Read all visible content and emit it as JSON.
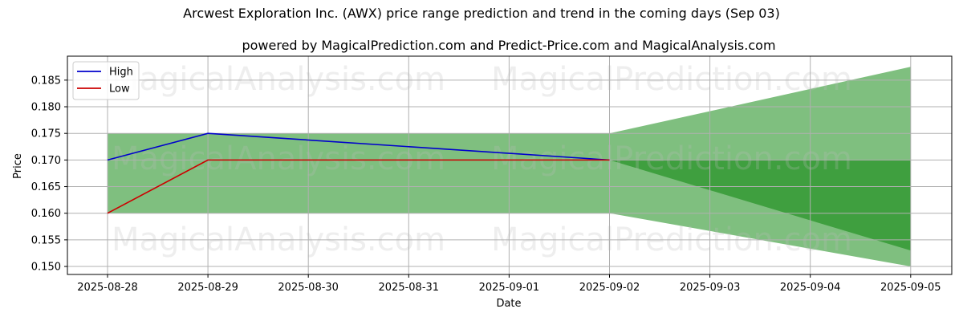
{
  "chart_data": {
    "type": "line",
    "title": "Arcwest Exploration Inc. (AWX) price range prediction and trend in the coming days (Sep 03)",
    "subtitle": "powered by MagicalPrediction.com and Predict-Price.com and MagicalAnalysis.com",
    "xlabel": "Date",
    "ylabel": "Price",
    "x": [
      "2025-08-28",
      "2025-08-29",
      "2025-08-30",
      "2025-08-31",
      "2025-09-01",
      "2025-09-02",
      "2025-09-03",
      "2025-09-04",
      "2025-09-05"
    ],
    "yticks": [
      "0.150",
      "0.155",
      "0.160",
      "0.165",
      "0.170",
      "0.175",
      "0.180",
      "0.185"
    ],
    "ylim": [
      0.1485,
      0.1895
    ],
    "grid": true,
    "legend_position": "top-left",
    "series": [
      {
        "name": "High",
        "color": "#0000cc",
        "x": [
          "2025-08-28",
          "2025-08-29",
          "2025-09-02"
        ],
        "values": [
          0.17,
          0.175,
          0.17
        ]
      },
      {
        "name": "Low",
        "color": "#cc0000",
        "x": [
          "2025-08-28",
          "2025-08-29",
          "2025-09-02"
        ],
        "values": [
          0.16,
          0.17,
          0.17
        ]
      }
    ],
    "bands": [
      {
        "name": "historical-range",
        "color": "#7fbf7f",
        "x_from": "2025-08-28",
        "x_to": "2025-09-02",
        "low": 0.16,
        "high": 0.175
      },
      {
        "name": "prediction-outer",
        "color": "#7fbf7f",
        "x_from": "2025-09-02",
        "x_to": "2025-09-05",
        "high_from": 0.175,
        "high_to": 0.1875,
        "low_from": 0.16,
        "low_to": 0.15
      },
      {
        "name": "prediction-inner",
        "color": "#3f9f3f",
        "x_from": "2025-09-02",
        "x_to": "2025-09-05",
        "high_from": 0.17,
        "high_to": 0.17,
        "low_from": 0.17,
        "low_to": 0.153
      }
    ],
    "watermarks": [
      "MagicalAnalysis.com",
      "MagicalPrediction.com",
      "MagicalAnalysis.com",
      "MagicalPrediction.com",
      "MagicalAnalysis.com",
      "MagicalPrediction.com"
    ]
  }
}
